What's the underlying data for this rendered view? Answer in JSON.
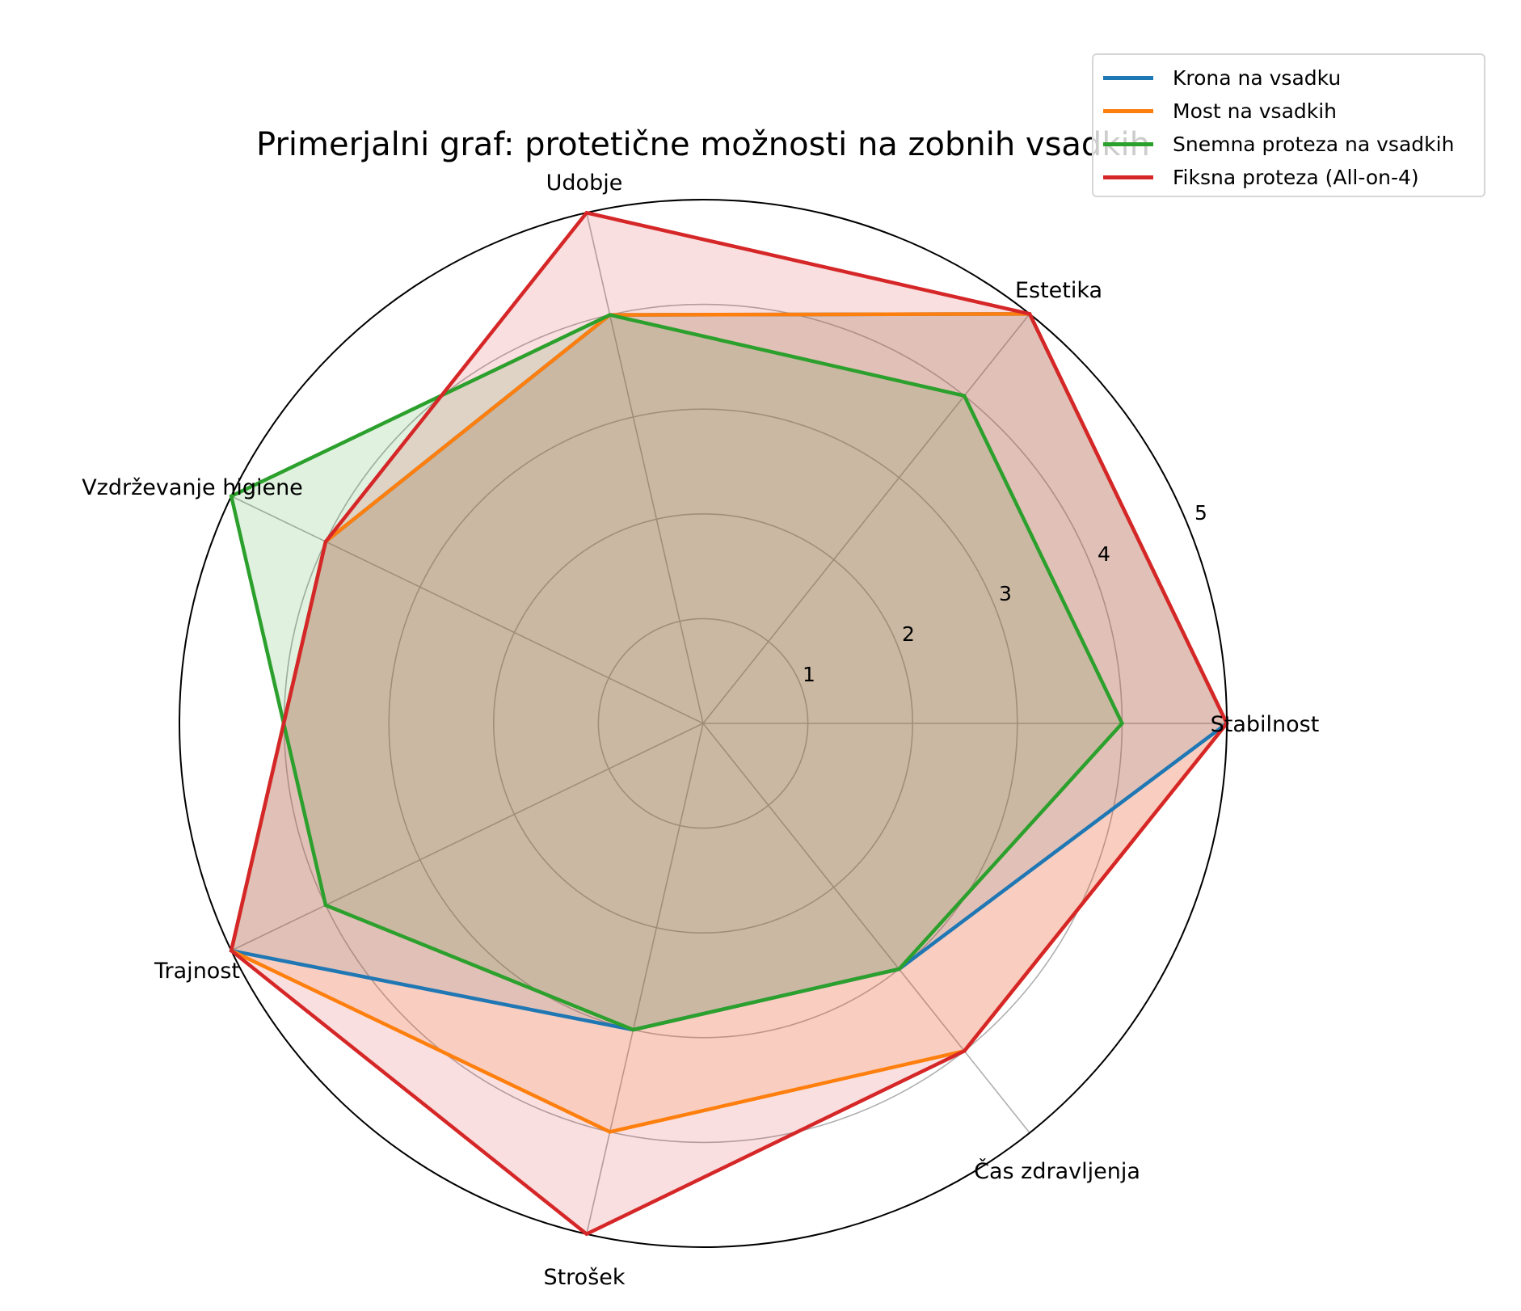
{
  "chart_data": {
    "type": "radar",
    "title": "Primerjalni graf: protetične možnosti na zobnih vsadkih",
    "categories": [
      "Stabilnost",
      "Estetika",
      "Udobje",
      "Vzdrževanje higiene",
      "Trajnost",
      "Strošek",
      "Čas zdravljenja"
    ],
    "series": [
      {
        "name": "Krona na vsadku",
        "color": "#1f77b4",
        "values": [
          5,
          5,
          4,
          4,
          5,
          3,
          3
        ]
      },
      {
        "name": "Most na vsadkih",
        "color": "#ff7f0e",
        "values": [
          5,
          5,
          4,
          4,
          5,
          4,
          4
        ]
      },
      {
        "name": "Snemna proteza na vsadkih",
        "color": "#2ca02c",
        "values": [
          4,
          4,
          4,
          5,
          4,
          3,
          3
        ]
      },
      {
        "name": "Fiksna proteza (All-on-4)",
        "color": "#d62728",
        "values": [
          5,
          5,
          5,
          4,
          5,
          5,
          4
        ]
      }
    ],
    "radial_ticks": [
      "1",
      "2",
      "3",
      "4",
      "5"
    ],
    "rlim": [
      0,
      5
    ],
    "grid": true,
    "legend_position": "upper right"
  },
  "legend": {
    "items": [
      {
        "label": "Krona na vsadku",
        "color": "#1f77b4"
      },
      {
        "label": "Most na vsadkih",
        "color": "#ff7f0e"
      },
      {
        "label": "Snemna proteza na vsadkih",
        "color": "#2ca02c"
      },
      {
        "label": "Fiksna proteza (All-on-4)",
        "color": "#d62728"
      }
    ]
  }
}
